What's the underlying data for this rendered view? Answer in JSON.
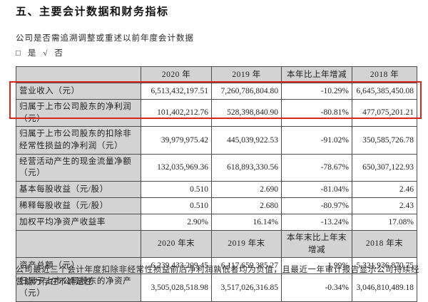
{
  "document": {
    "title": "五、主要会计数据和财务指标",
    "question": "公司是否需追溯调整或重述以前年度会计数据",
    "choices": {
      "no_box": "□",
      "yes_label": "是",
      "check_mark": "√",
      "no_label": "否"
    },
    "footnote": "公司最近三个会计年度扣除非经常性损益前后净利润孰低者均为负值，且最近一年审计报告显示公司持续经营能力存在不确定性"
  },
  "colors": {
    "highlight_red": "#da251c",
    "cell_gray": "#d3d3d3",
    "table_border": "#4d4d4d",
    "text": "#1f1f1f"
  },
  "table": {
    "sections": [
      {
        "header": [
          "2020 年",
          "2019 年",
          "本年比上年增减",
          "2018 年"
        ],
        "rows": [
          {
            "label": "营业收入（元）",
            "values": [
              "6,513,432,197.51",
              "7,260,786,804.80",
              "-10.29%",
              "6,645,385,450.08"
            ],
            "highlighted": true
          },
          {
            "label": "归属于上市公司股东的净利润（元）",
            "values": [
              "101,402,212.76",
              "528,398,840.90",
              "-80.81%",
              "477,075,201.21"
            ],
            "highlighted": true
          },
          {
            "label": "归属于上市公司股东的扣除非经常性损益的净利润（元）",
            "values": [
              "39,979,975.42",
              "445,039,922.53",
              "-91.02%",
              "350,585,726.78"
            ],
            "highlighted": false
          },
          {
            "label": "经营活动产生的现金流量净额（元）",
            "values": [
              "132,035,969.36",
              "618,893,330.56",
              "-78.67%",
              "650,307,122.93"
            ],
            "highlighted": false
          },
          {
            "label": "基本每股收益（元/股）",
            "values": [
              "0.510",
              "2.690",
              "-81.04%",
              "2.46"
            ],
            "highlighted": false
          },
          {
            "label": "稀释每股收益（元/股）",
            "values": [
              "0.510",
              "2.680",
              "-80.97%",
              "2.43"
            ],
            "highlighted": false
          },
          {
            "label": "加权平均净资产收益率",
            "values": [
              "2.90%",
              "16.14%",
              "-13.24%",
              "17.08%"
            ],
            "highlighted": false
          }
        ]
      },
      {
        "header": [
          "2020 年末",
          "2019 年末",
          "本年末比上年末增减",
          "2018 年末"
        ],
        "rows": [
          {
            "label": "资产总额（元）",
            "values": [
              "6,239,433,209.45",
              "6,117,659,385.27",
              "1.99%",
              "5,321,936,870.75"
            ],
            "highlighted": false
          },
          {
            "label": "归属于上市公司股东的净资产（元）",
            "values": [
              "3,505,028,518.98",
              "3,517,026,316.85",
              "-0.34%",
              "3,046,810,489.18"
            ],
            "highlighted": false
          }
        ]
      }
    ]
  }
}
